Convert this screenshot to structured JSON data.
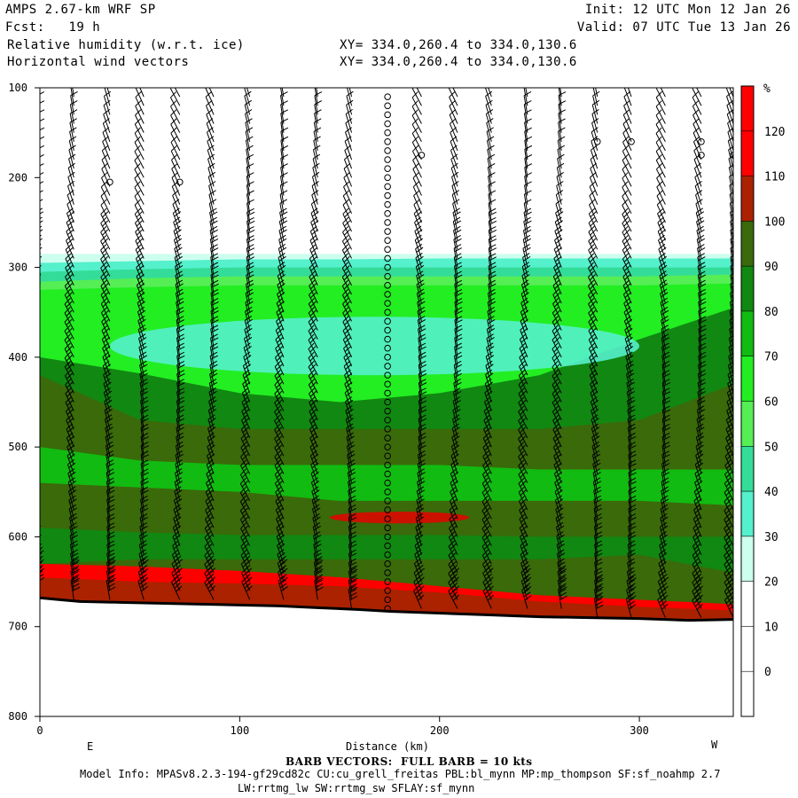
{
  "header": {
    "model": "AMPS 2.67-km WRF SP",
    "init": "Init: 12 UTC Mon 12 Jan 26",
    "fcst_label": "Fcst:",
    "fcst_value": "19 h",
    "valid": "Valid: 07 UTC Tue 13 Jan 26",
    "field1": "Relative humidity (w.r.t. ice)",
    "field2": "Horizontal wind vectors",
    "xy1": "XY= 334.0,260.4 to 334.0,130.6",
    "xy2": "XY= 334.0,260.4 to 334.0,130.6"
  },
  "footer": {
    "barb_note": "BARB VECTORS:  FULL BARB = 10 kts",
    "model_info": "Model Info: MPASv8.2.3-194-gf29cd82c CU:cu_grell_freitas PBL:bl_mynn MP:mp_thompson SF:sf_noahmp 2.7",
    "model_info2": "LW:rrtmg_lw SW:rrtmg_sw SFLAY:sf_mynn"
  },
  "chart_data": {
    "type": "heatmap",
    "title": "Relative humidity (w.r.t. ice)",
    "xlabel": "Distance (km)",
    "ylabel": "",
    "x_ticks": [
      0,
      100,
      200,
      300
    ],
    "y_ticks": [
      100,
      200,
      300,
      400,
      500,
      600,
      700,
      800
    ],
    "xlim": [
      0,
      347
    ],
    "ylim": [
      800,
      100
    ],
    "x_end_labels": {
      "left": "E",
      "right": "W"
    },
    "colorbar": {
      "unit": "%",
      "levels": [
        0,
        10,
        20,
        30,
        40,
        50,
        60,
        70,
        80,
        90,
        100,
        110,
        120
      ],
      "colors": [
        "#ffffff",
        "#ffffff",
        "#ffffff",
        "#ccffee",
        "#55f0cc",
        "#33dd99",
        "#55ee55",
        "#22ee22",
        "#11bb11",
        "#118811",
        "#3a6a0a",
        "#aa2200",
        "#ff0000"
      ]
    },
    "bands": [
      {
        "level": 30,
        "top": [
          285,
          285,
          285,
          285,
          285,
          285,
          285,
          285
        ],
        "color": "#ccffee"
      },
      {
        "level": 40,
        "top": [
          295,
          293,
          291,
          291,
          290,
          290,
          290,
          290
        ],
        "color": "#55f0cc"
      },
      {
        "level": 50,
        "top": [
          305,
          302,
          300,
          300,
          300,
          300,
          300,
          300
        ],
        "color": "#33dd99"
      },
      {
        "level": 60,
        "top": [
          316,
          312,
          310,
          310,
          310,
          310,
          310,
          308
        ],
        "color": "#55ee55"
      },
      {
        "level": 70,
        "top": [
          325,
          322,
          320,
          320,
          320,
          320,
          320,
          318
        ],
        "color": "#22ee22"
      },
      {
        "level": 90,
        "top": [
          400,
          418,
          440,
          450,
          440,
          420,
          380,
          345
        ],
        "color": "#118811"
      },
      {
        "level": 100,
        "top": [
          420,
          470,
          480,
          480,
          480,
          480,
          470,
          430
        ],
        "color": "#3a6a0a"
      },
      {
        "level": 80,
        "top": [
          500,
          515,
          520,
          520,
          520,
          525,
          525,
          525
        ],
        "color": "#11bb11"
      },
      {
        "level": 100,
        "top": [
          540,
          545,
          550,
          560,
          560,
          560,
          560,
          565
        ],
        "color": "#3a6a0a"
      },
      {
        "level": 90,
        "top": [
          590,
          595,
          598,
          598,
          598,
          600,
          600,
          600
        ],
        "color": "#118811"
      },
      {
        "level": 100,
        "top": [
          630,
          625,
          625,
          625,
          625,
          625,
          620,
          640
        ],
        "color": "#3a6a0a"
      },
      {
        "level": 120,
        "top": [
          630,
          633,
          638,
          645,
          655,
          665,
          670,
          675
        ],
        "color": "#ff0000"
      },
      {
        "level": 110,
        "top": [
          645,
          650,
          652,
          655,
          662,
          672,
          678,
          682
        ],
        "color": "#aa2200"
      }
    ],
    "band_x": [
      0,
      50,
      100,
      150,
      200,
      250,
      300,
      347
    ],
    "cyan_patch": {
      "x": [
        35,
        300
      ],
      "p": [
        355,
        420
      ]
    },
    "red_patch": {
      "x": [
        145,
        215
      ],
      "p": [
        572,
        585
      ]
    },
    "terrain": {
      "x": [
        0,
        10,
        20,
        40,
        60,
        80,
        100,
        120,
        140,
        160,
        175,
        200,
        225,
        250,
        275,
        300,
        325,
        347
      ],
      "p": [
        668,
        670,
        672,
        673,
        674,
        675,
        676,
        677,
        679,
        681,
        683,
        685,
        687,
        689,
        690,
        691,
        693,
        692
      ]
    },
    "barb_columns": [
      0,
      17,
      35,
      52,
      70,
      87,
      105,
      122,
      139,
      156,
      174,
      191,
      209,
      226,
      244,
      261,
      279,
      296,
      313,
      331,
      347
    ],
    "calm_column_km": 174,
    "calm_markers": [
      {
        "x": 35,
        "p": 205
      },
      {
        "x": 70,
        "p": 205
      },
      {
        "x": 191,
        "p": 175
      },
      {
        "x": 279,
        "p": 160
      },
      {
        "x": 296,
        "p": 160
      },
      {
        "x": 331,
        "p": 160
      },
      {
        "x": 331,
        "p": 175
      },
      {
        "x": 347,
        "p": 175
      }
    ]
  }
}
